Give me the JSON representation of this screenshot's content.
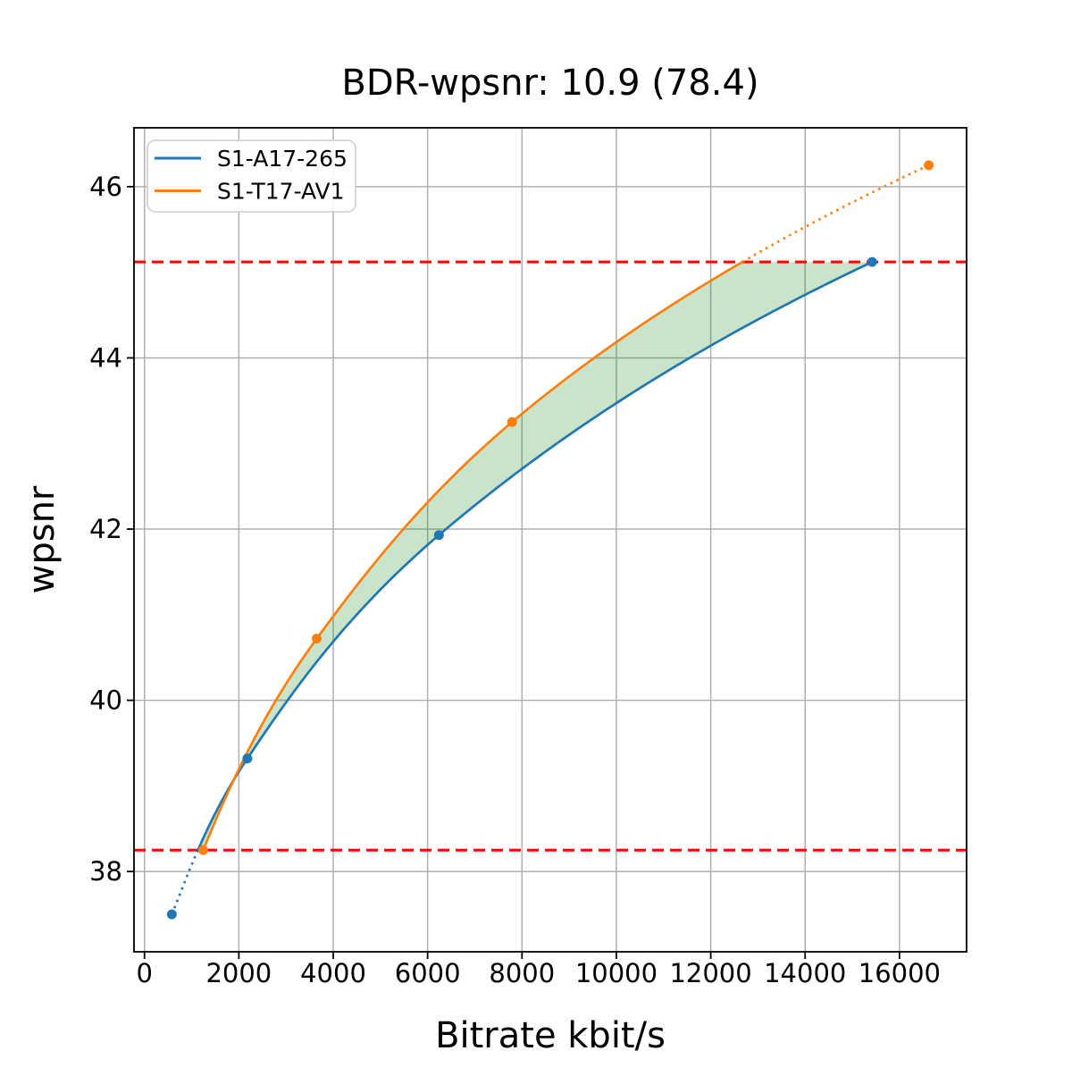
{
  "chart_data": {
    "type": "line",
    "title": "BDR-wpsnr: 10.9 (78.4)",
    "xlabel": "Bitrate kbit/s",
    "ylabel": "wpsnr",
    "xlim": [
      -222,
      17422
    ],
    "ylim": [
      37.0625,
      46.6875
    ],
    "xticks": [
      0,
      2000,
      4000,
      6000,
      8000,
      10000,
      12000,
      14000,
      16000
    ],
    "yticks": [
      38,
      40,
      42,
      44,
      46
    ],
    "grid": true,
    "grid_color": "#b0b0b0",
    "legend_position": "upper left",
    "series": [
      {
        "name": "S1-A17-265",
        "color": "#1f77b4",
        "points": [
          [
            580,
            37.5
          ],
          [
            2180,
            39.32
          ],
          [
            6240,
            41.93
          ],
          [
            15420,
            45.12
          ]
        ]
      },
      {
        "name": "S1-T17-AV1",
        "color": "#ff7f0e",
        "points": [
          [
            1245,
            38.25
          ],
          [
            3650,
            40.72
          ],
          [
            7790,
            43.25
          ],
          [
            16620,
            46.25
          ]
        ]
      }
    ],
    "bd_overlap_wpsnr": [
      38.25,
      45.12
    ],
    "ref_lines": {
      "values": [
        45.12,
        38.25
      ],
      "color": "#ff0000",
      "style": "dashed"
    },
    "fill_between_color": "rgba(0,128,0,0.21)",
    "interpolation": "pchip-log-rate"
  }
}
